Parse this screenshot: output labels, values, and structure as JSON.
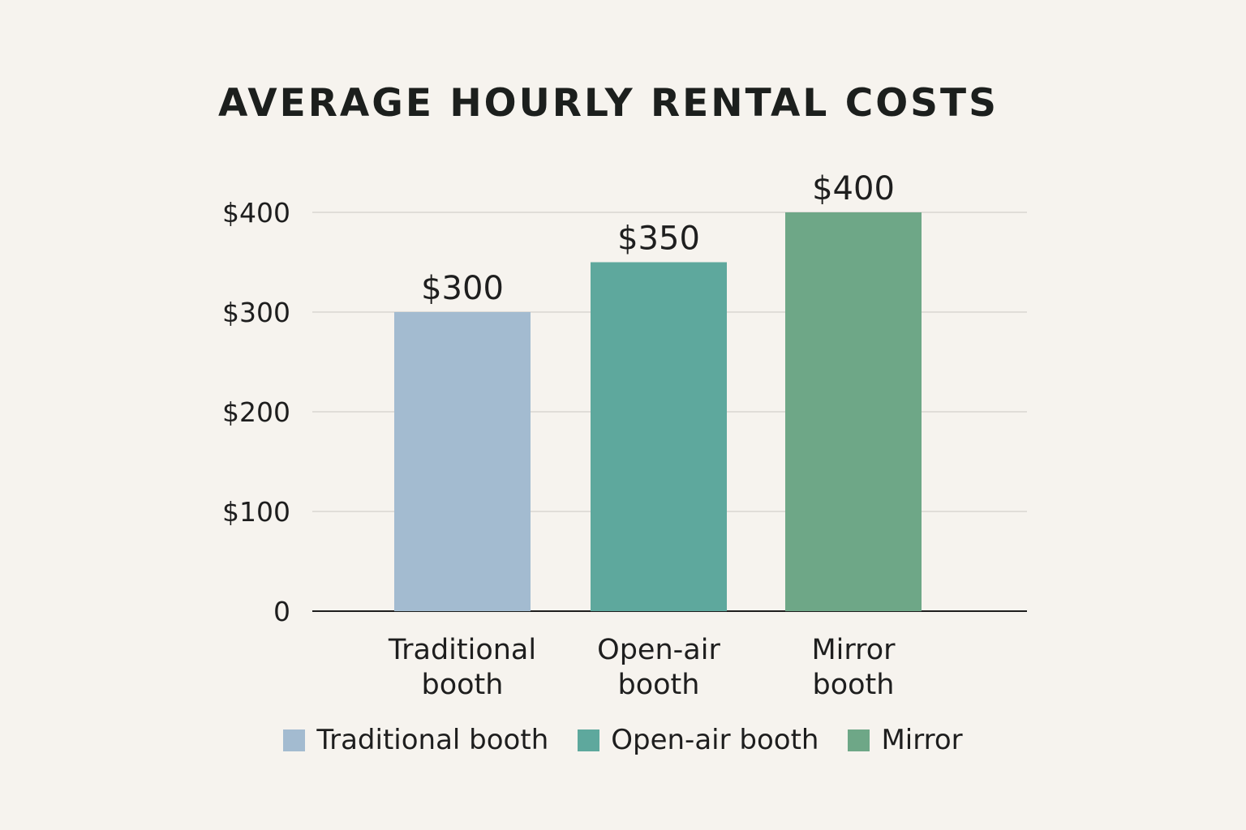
{
  "chart_data": {
    "type": "bar",
    "title": "AVERAGE HOURLY RENTAL COSTS",
    "categories": [
      [
        "Traditional",
        "booth"
      ],
      [
        "Open-air",
        "booth"
      ],
      [
        "Mirror",
        "booth"
      ]
    ],
    "values": [
      300,
      350,
      400
    ],
    "data_labels": [
      "$300",
      "$350",
      "$400"
    ],
    "colors": [
      "#a3bbd0",
      "#5ea89d",
      "#6ea787"
    ],
    "ylim": [
      0,
      400
    ],
    "yticks": [
      0,
      100,
      200,
      300,
      400
    ],
    "ytick_labels": [
      "0",
      "$100",
      "$200",
      "$300",
      "$400"
    ],
    "grid": true,
    "legend": {
      "placement": "bottom",
      "entries": [
        "Traditional booth",
        "Open-air booth",
        "Mirror"
      ]
    }
  }
}
